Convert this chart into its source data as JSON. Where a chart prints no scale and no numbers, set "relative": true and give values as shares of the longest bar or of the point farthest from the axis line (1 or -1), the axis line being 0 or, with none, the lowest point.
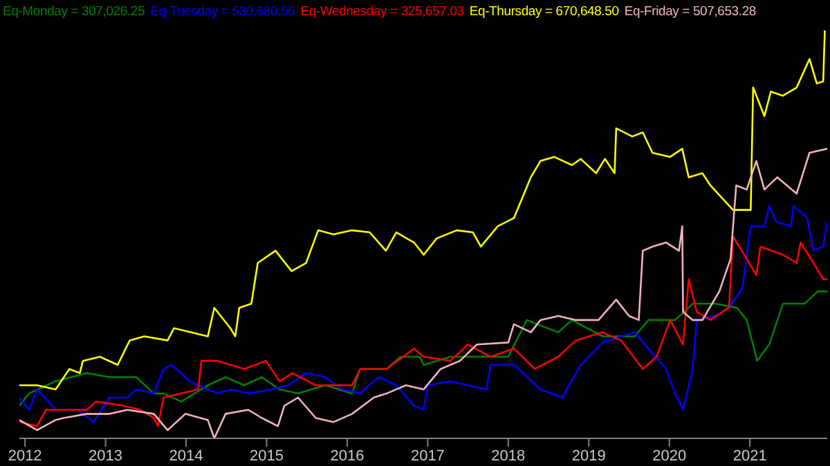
{
  "chart_data": {
    "type": "line",
    "relative": true,
    "legend": "top",
    "marker": "none",
    "xlim": [
      2011.93,
      2021.96
    ],
    "xticks": [
      2012,
      2013,
      2014,
      2015,
      2016,
      2017,
      2018,
      2019,
      2020,
      2021
    ],
    "series": [
      {
        "name": "Eq-Monday = 307,026.25",
        "color": "#008000",
        "x": [
          2011.93,
          2012.05,
          2012.38,
          2012.77,
          2013.05,
          2013.38,
          2013.6,
          2013.72,
          2013.94,
          2014.27,
          2014.49,
          2014.72,
          2014.94,
          2015.16,
          2015.39,
          2015.73,
          2016.06,
          2016.16,
          2016.49,
          2016.66,
          2016.9,
          2016.95,
          2017.28,
          2017.78,
          2018.0,
          2018.23,
          2018.62,
          2018.79,
          2019.17,
          2019.57,
          2019.74,
          2020.07,
          2020.29,
          2020.57,
          2020.84,
          2020.96,
          2021.09,
          2021.24,
          2021.41,
          2021.68,
          2021.84,
          2021.96
        ],
        "values": [
          0.08,
          0.11,
          0.14,
          0.16,
          0.15,
          0.15,
          0.11,
          0.11,
          0.09,
          0.13,
          0.15,
          0.13,
          0.15,
          0.12,
          0.11,
          0.13,
          0.11,
          0.17,
          0.17,
          0.2,
          0.2,
          0.18,
          0.2,
          0.2,
          0.2,
          0.29,
          0.26,
          0.29,
          0.25,
          0.25,
          0.29,
          0.29,
          0.33,
          0.33,
          0.32,
          0.29,
          0.19,
          0.23,
          0.33,
          0.33,
          0.36,
          0.36
        ]
      },
      {
        "name": "Eq-Tuesday = 530,680.56",
        "color": "#0000ff",
        "x": [
          2011.93,
          2012.05,
          2012.15,
          2012.38,
          2012.65,
          2012.85,
          2013.05,
          2013.27,
          2013.38,
          2013.6,
          2013.72,
          2013.82,
          2014.05,
          2014.15,
          2014.39,
          2014.55,
          2014.77,
          2015.06,
          2015.27,
          2015.49,
          2015.73,
          2015.94,
          2016.16,
          2016.39,
          2016.61,
          2016.83,
          2016.95,
          2017.0,
          2017.28,
          2017.73,
          2017.78,
          2018.07,
          2018.4,
          2018.67,
          2018.9,
          2019.17,
          2019.57,
          2019.74,
          2019.96,
          2020.07,
          2020.17,
          2020.29,
          2020.34,
          2020.57,
          2020.74,
          2020.91,
          2021.01,
          2021.18,
          2021.24,
          2021.33,
          2021.51,
          2021.54,
          2021.71,
          2021.79,
          2021.91,
          2021.96
        ],
        "values": [
          0.1,
          0.07,
          0.12,
          0.07,
          0.07,
          0.04,
          0.1,
          0.1,
          0.12,
          0.11,
          0.17,
          0.18,
          0.14,
          0.13,
          0.11,
          0.12,
          0.11,
          0.12,
          0.13,
          0.16,
          0.15,
          0.12,
          0.11,
          0.15,
          0.13,
          0.08,
          0.07,
          0.13,
          0.14,
          0.12,
          0.18,
          0.18,
          0.12,
          0.1,
          0.18,
          0.235,
          0.26,
          0.22,
          0.17,
          0.11,
          0.07,
          0.17,
          0.29,
          0.3,
          0.32,
          0.37,
          0.52,
          0.52,
          0.57,
          0.53,
          0.52,
          0.57,
          0.54,
          0.46,
          0.47,
          0.53
        ]
      },
      {
        "name": "Eq-Wednesday = 325,657.03",
        "color": "#ff0000",
        "x": [
          2011.93,
          2012.15,
          2012.26,
          2012.48,
          2012.77,
          2012.88,
          2013.22,
          2013.43,
          2013.6,
          2013.65,
          2013.72,
          2014.15,
          2014.19,
          2014.39,
          2014.72,
          2014.99,
          2015.16,
          2015.32,
          2015.61,
          2016.06,
          2016.16,
          2016.49,
          2016.83,
          2016.95,
          2017.28,
          2017.5,
          2017.78,
          2018.07,
          2018.33,
          2018.62,
          2018.84,
          2019.17,
          2019.4,
          2019.67,
          2019.84,
          2020.01,
          2020.17,
          2020.24,
          2020.34,
          2020.51,
          2020.74,
          2020.79,
          2020.96,
          2021.08,
          2021.13,
          2021.41,
          2021.58,
          2021.63,
          2021.79,
          2021.91,
          2021.96
        ],
        "values": [
          0.04,
          0.03,
          0.07,
          0.07,
          0.07,
          0.09,
          0.08,
          0.07,
          0.05,
          0.03,
          0.1,
          0.12,
          0.19,
          0.19,
          0.17,
          0.19,
          0.14,
          0.16,
          0.13,
          0.13,
          0.17,
          0.17,
          0.22,
          0.2,
          0.19,
          0.23,
          0.2,
          0.22,
          0.17,
          0.2,
          0.24,
          0.26,
          0.24,
          0.17,
          0.2,
          0.29,
          0.23,
          0.39,
          0.31,
          0.29,
          0.32,
          0.495,
          0.44,
          0.4,
          0.47,
          0.45,
          0.43,
          0.48,
          0.43,
          0.39,
          0.39
        ]
      },
      {
        "name": "Eq-Thursday = 670,648.50",
        "color": "#ffff00",
        "x": [
          2011.93,
          2012.15,
          2012.38,
          2012.55,
          2012.68,
          2012.72,
          2012.93,
          2013.15,
          2013.3,
          2013.48,
          2013.77,
          2013.85,
          2014.27,
          2014.35,
          2014.55,
          2014.61,
          2014.66,
          2014.81,
          2014.89,
          2015.11,
          2015.31,
          2015.49,
          2015.64,
          2015.83,
          2016.06,
          2016.28,
          2016.48,
          2016.61,
          2016.83,
          2016.95,
          2017.11,
          2017.36,
          2017.56,
          2017.66,
          2017.87,
          2018.07,
          2018.28,
          2018.4,
          2018.57,
          2018.79,
          2018.9,
          2019.09,
          2019.2,
          2019.32,
          2019.34,
          2019.54,
          2019.67,
          2019.79,
          2020.01,
          2020.16,
          2020.24,
          2020.41,
          2020.51,
          2020.79,
          2021.01,
          2021.04,
          2021.18,
          2021.26,
          2021.41,
          2021.58,
          2021.74,
          2021.83,
          2021.91,
          2021.93
        ],
        "values": [
          0.13,
          0.13,
          0.12,
          0.17,
          0.16,
          0.19,
          0.2,
          0.18,
          0.24,
          0.25,
          0.24,
          0.27,
          0.25,
          0.32,
          0.27,
          0.25,
          0.32,
          0.33,
          0.43,
          0.46,
          0.41,
          0.43,
          0.51,
          0.5,
          0.51,
          0.505,
          0.46,
          0.505,
          0.48,
          0.45,
          0.49,
          0.51,
          0.505,
          0.47,
          0.52,
          0.54,
          0.64,
          0.68,
          0.69,
          0.67,
          0.685,
          0.65,
          0.685,
          0.65,
          0.76,
          0.74,
          0.75,
          0.7,
          0.69,
          0.71,
          0.64,
          0.65,
          0.62,
          0.56,
          0.56,
          0.86,
          0.79,
          0.85,
          0.84,
          0.86,
          0.93,
          0.87,
          0.875,
          1.0
        ]
      },
      {
        "name": "Eq-Friday = 507,653.28",
        "color": "#f0b4bc",
        "x": [
          2011.93,
          2012.15,
          2012.38,
          2012.48,
          2012.77,
          2013.05,
          2013.27,
          2013.6,
          2013.77,
          2013.99,
          2014.27,
          2014.35,
          2014.49,
          2014.77,
          2014.94,
          2015.14,
          2015.22,
          2015.39,
          2015.61,
          2015.83,
          2016.06,
          2016.33,
          2016.49,
          2016.73,
          2016.95,
          2017.16,
          2017.4,
          2017.61,
          2018.0,
          2018.07,
          2018.28,
          2018.4,
          2018.62,
          2018.84,
          2019.12,
          2019.34,
          2019.5,
          2019.62,
          2019.67,
          2019.79,
          2019.96,
          2020.12,
          2020.16,
          2020.17,
          2020.29,
          2020.41,
          2020.62,
          2020.76,
          2020.83,
          2020.96,
          2021.08,
          2021.18,
          2021.34,
          2021.58,
          2021.74,
          2021.96
        ],
        "values": [
          0.045,
          0.02,
          0.045,
          0.05,
          0.06,
          0.06,
          0.07,
          0.06,
          0.02,
          0.06,
          0.045,
          0.0,
          0.06,
          0.07,
          0.05,
          0.03,
          0.08,
          0.1,
          0.05,
          0.04,
          0.06,
          0.1,
          0.11,
          0.13,
          0.12,
          0.17,
          0.19,
          0.23,
          0.235,
          0.28,
          0.26,
          0.29,
          0.3,
          0.29,
          0.29,
          0.34,
          0.3,
          0.29,
          0.46,
          0.47,
          0.48,
          0.46,
          0.52,
          0.31,
          0.29,
          0.29,
          0.36,
          0.44,
          0.62,
          0.61,
          0.68,
          0.61,
          0.64,
          0.6,
          0.7,
          0.71
        ]
      }
    ]
  }
}
